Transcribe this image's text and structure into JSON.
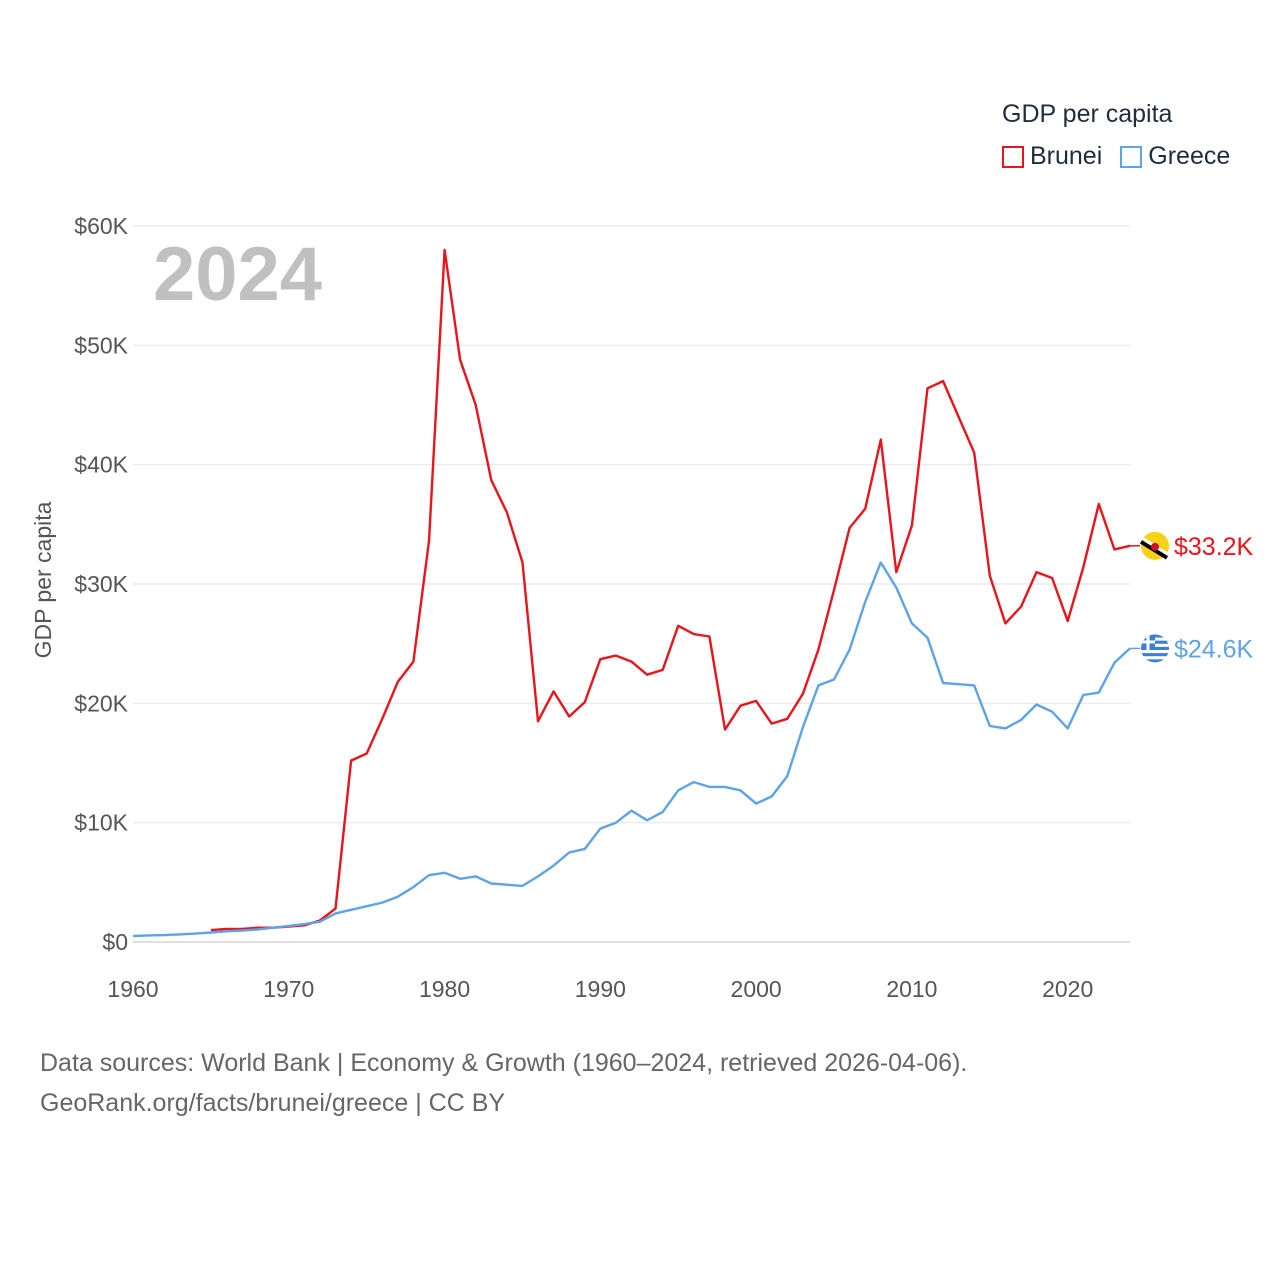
{
  "legend": {
    "title": "GDP per capita",
    "items": [
      {
        "label": "Brunei",
        "color": "#e8151b"
      },
      {
        "label": "Greece",
        "color": "#5da3e8"
      }
    ]
  },
  "footer": {
    "line1": "Data sources: World Bank | Economy & Growth (1960–2024, retrieved 2026-04-06).",
    "line2": "GeoRank.org/facts/brunei/greece | CC BY"
  },
  "chart_data": {
    "type": "line",
    "year_label": "2024",
    "ylabel": "GDP per capita",
    "xlim": [
      1960,
      2024
    ],
    "ylim": [
      0,
      60000
    ],
    "x_ticks": [
      1960,
      1970,
      1980,
      1990,
      2000,
      2010,
      2020
    ],
    "y_ticks": [
      {
        "value": 0,
        "label": "$0"
      },
      {
        "value": 10000,
        "label": "$10K"
      },
      {
        "value": 20000,
        "label": "$20K"
      },
      {
        "value": 30000,
        "label": "$30K"
      },
      {
        "value": 40000,
        "label": "$40K"
      },
      {
        "value": 50000,
        "label": "$50K"
      },
      {
        "value": 60000,
        "label": "$60K"
      }
    ],
    "series": [
      {
        "name": "Brunei",
        "color": "#e8151b",
        "end_label": "$33.2K",
        "x": [
          1965,
          1966,
          1967,
          1968,
          1969,
          1970,
          1971,
          1972,
          1973,
          1974,
          1975,
          1976,
          1977,
          1978,
          1979,
          1980,
          1981,
          1982,
          1983,
          1984,
          1985,
          1986,
          1987,
          1988,
          1989,
          1990,
          1991,
          1992,
          1993,
          1994,
          1995,
          1996,
          1997,
          1998,
          1999,
          2000,
          2001,
          2002,
          2003,
          2004,
          2005,
          2006,
          2007,
          2008,
          2009,
          2010,
          2011,
          2012,
          2013,
          2014,
          2015,
          2016,
          2017,
          2018,
          2019,
          2020,
          2021,
          2022,
          2023,
          2024
        ],
        "values": [
          1000,
          1100,
          1100,
          1200,
          1200,
          1300,
          1400,
          1800,
          2800,
          15200,
          15800,
          18700,
          21800,
          23500,
          33600,
          58000,
          48800,
          45000,
          38700,
          36000,
          31800,
          18500,
          21000,
          18900,
          20100,
          23700,
          24000,
          23500,
          22400,
          22800,
          26500,
          25800,
          25600,
          17800,
          19800,
          20200,
          18300,
          18700,
          20800,
          24500,
          29500,
          34700,
          36300,
          42100,
          31000,
          34900,
          46400,
          47000,
          44000,
          41000,
          30700,
          26700,
          28100,
          31000,
          30500,
          26900,
          31400,
          36700,
          32900,
          33200
        ]
      },
      {
        "name": "Greece",
        "color": "#5da3e8",
        "end_label": "$24.6K",
        "x": [
          1960,
          1961,
          1962,
          1963,
          1964,
          1965,
          1966,
          1967,
          1968,
          1969,
          1970,
          1971,
          1972,
          1973,
          1974,
          1975,
          1976,
          1977,
          1978,
          1979,
          1980,
          1981,
          1982,
          1983,
          1984,
          1985,
          1986,
          1987,
          1988,
          1989,
          1990,
          1991,
          1992,
          1993,
          1994,
          1995,
          1996,
          1997,
          1998,
          1999,
          2000,
          2001,
          2002,
          2003,
          2004,
          2005,
          2006,
          2007,
          2008,
          2009,
          2010,
          2011,
          2012,
          2013,
          2014,
          2015,
          2016,
          2017,
          2018,
          2019,
          2020,
          2021,
          2022,
          2023,
          2024
        ],
        "values": [
          500,
          550,
          580,
          640,
          700,
          800,
          900,
          960,
          1050,
          1200,
          1350,
          1500,
          1700,
          2400,
          2700,
          3000,
          3300,
          3800,
          4600,
          5600,
          5800,
          5300,
          5500,
          4900,
          4800,
          4700,
          5500,
          6400,
          7500,
          7800,
          9500,
          10000,
          11000,
          10200,
          10900,
          12700,
          13400,
          13000,
          13000,
          12700,
          11600,
          12200,
          13900,
          18000,
          21500,
          22000,
          24500,
          28500,
          31800,
          29700,
          26700,
          25500,
          21700,
          21600,
          21500,
          18100,
          17900,
          18600,
          19900,
          19300,
          17900,
          20700,
          20900,
          23400,
          24600
        ]
      }
    ]
  }
}
